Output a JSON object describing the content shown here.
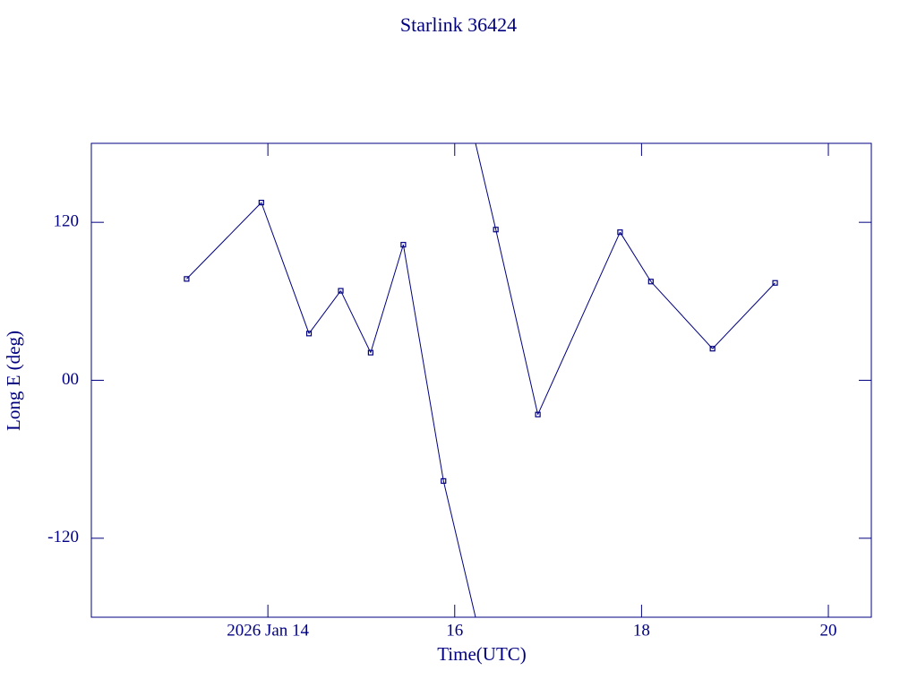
{
  "chart_data": {
    "type": "line",
    "title": "Starlink 36424",
    "x_label": "Time(UTC)",
    "y_label": "Long E (deg)",
    "x": [
      13.13,
      13.93,
      14.44,
      14.78,
      15.1,
      15.45,
      15.88,
      16.44,
      16.89,
      17.77,
      18.1,
      18.76,
      19.43
    ],
    "values": [
      77,
      135,
      35.5,
      68,
      21,
      103,
      -76.5,
      114.5,
      -26,
      112.5,
      75,
      24,
      74
    ],
    "color": "#000080",
    "xlim": [
      12.11,
      20.46
    ],
    "xticks": [
      {
        "value": 14,
        "label": "2026 Jan 14"
      },
      16,
      18,
      20
    ],
    "ylim": [
      -180,
      180
    ],
    "yticks": [
      -120,
      {
        "value": 0,
        "label": "00"
      },
      120
    ],
    "grid": false
  }
}
